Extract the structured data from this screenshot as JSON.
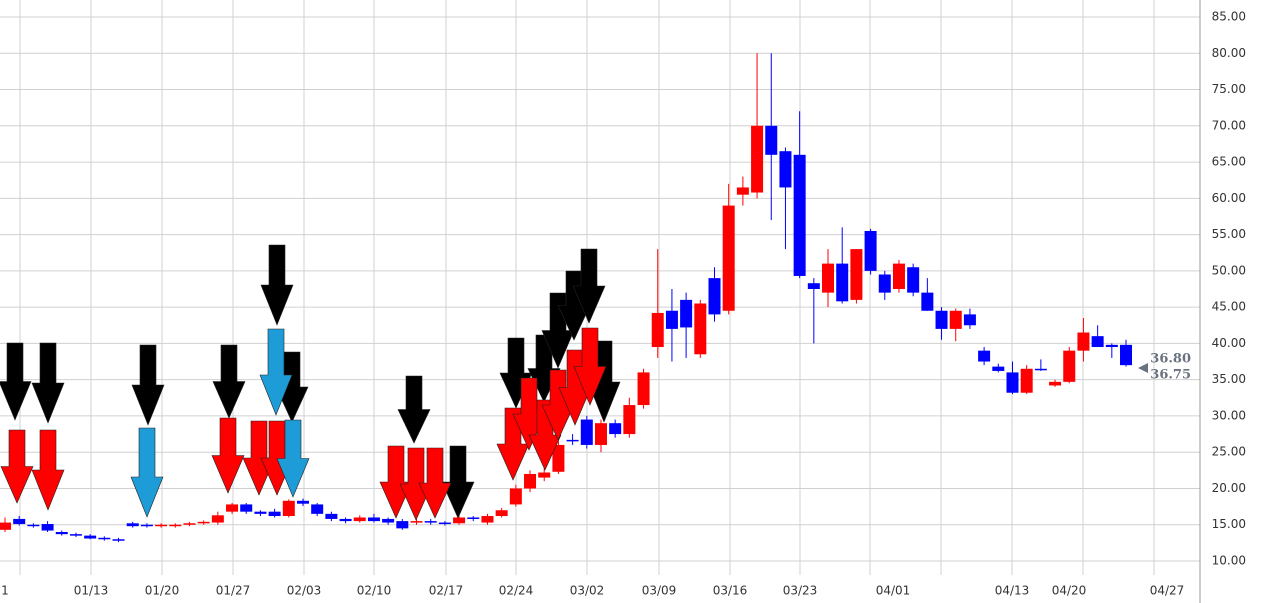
{
  "chart_data": {
    "type": "candlestick",
    "up_color": "#ff0000",
    "down_color": "#0000ff",
    "grid": true,
    "ylim": [
      8,
      87
    ],
    "yticks": [
      {
        "value": 10,
        "label": "10.00"
      },
      {
        "value": 15,
        "label": "15.00"
      },
      {
        "value": 20,
        "label": "20.00"
      },
      {
        "value": 25,
        "label": "25.00"
      },
      {
        "value": 30,
        "label": "30.00"
      },
      {
        "value": 35,
        "label": "35.00"
      },
      {
        "value": 40,
        "label": "40.00"
      },
      {
        "value": 45,
        "label": "45.00"
      },
      {
        "value": 50,
        "label": "50.00"
      },
      {
        "value": 55,
        "label": "55.00"
      },
      {
        "value": 60,
        "label": "60.00"
      },
      {
        "value": 65,
        "label": "65.00"
      },
      {
        "value": 70,
        "label": "70.00"
      },
      {
        "value": 75,
        "label": "75.00"
      },
      {
        "value": 80,
        "label": "80.00"
      },
      {
        "value": 85,
        "label": "85.00"
      }
    ],
    "xtick_labels": [
      "1",
      "01/13",
      "01/20",
      "01/27",
      "02/03",
      "02/10",
      "02/17",
      "02/24",
      "03/02",
      "03/09",
      "03/16",
      "03/23",
      "04/01",
      "04/13",
      "04/20",
      "04/27"
    ],
    "annotations": [
      "36.80",
      "36.75"
    ],
    "candles": [
      [
        14.3,
        16,
        14,
        15.3
      ],
      [
        15.8,
        16.2,
        14.9,
        15.1
      ],
      [
        15,
        15.2,
        14.6,
        14.8
      ],
      [
        15.1,
        15.5,
        14,
        14.2
      ],
      [
        14,
        14.2,
        13.5,
        13.7
      ],
      [
        13.7,
        13.9,
        13.3,
        13.5
      ],
      [
        13.5,
        13.7,
        13,
        13.1
      ],
      [
        13.2,
        13.4,
        12.8,
        13
      ],
      [
        13,
        13.2,
        12.6,
        12.8
      ],
      [
        15.2,
        15.4,
        14.6,
        14.8
      ],
      [
        15,
        15.2,
        14.6,
        14.8
      ],
      [
        14.8,
        15.2,
        14.6,
        15
      ],
      [
        14.8,
        15.2,
        14.6,
        15
      ],
      [
        15,
        15.4,
        14.8,
        15.2
      ],
      [
        15.2,
        15.6,
        15,
        15.4
      ],
      [
        15.3,
        16.8,
        15,
        16.3
      ],
      [
        16.8,
        18,
        16.5,
        17.8
      ],
      [
        17.8,
        18,
        16.5,
        16.8
      ],
      [
        16.8,
        17,
        16.2,
        16.5
      ],
      [
        16.8,
        17.2,
        16,
        16.2
      ],
      [
        16.2,
        18.5,
        16,
        18.3
      ],
      [
        18.3,
        18.6,
        17.6,
        17.9
      ],
      [
        17.8,
        18,
        16.2,
        16.5
      ],
      [
        16.5,
        16.8,
        15.5,
        15.8
      ],
      [
        15.8,
        16,
        15.2,
        15.5
      ],
      [
        15.5,
        16.3,
        15.3,
        16
      ],
      [
        16,
        16.5,
        15.3,
        15.5
      ],
      [
        15.8,
        16,
        15,
        15.3
      ],
      [
        15.5,
        15.8,
        14.3,
        14.5
      ],
      [
        15.3,
        15.8,
        15,
        15.5
      ],
      [
        15.5,
        15.8,
        15,
        15.3
      ],
      [
        15.3,
        15.5,
        14.9,
        15.1
      ],
      [
        15.2,
        16.3,
        15,
        16
      ],
      [
        16,
        16.2,
        15.5,
        15.8
      ],
      [
        15.3,
        16.5,
        15,
        16.2
      ],
      [
        16.2,
        17.3,
        16,
        17
      ],
      [
        17.8,
        20.5,
        17.5,
        20
      ],
      [
        20,
        22.5,
        19.5,
        22
      ],
      [
        21.5,
        22.8,
        21,
        22.2
      ],
      [
        22.3,
        26.5,
        22,
        26
      ],
      [
        26.7,
        27.5,
        26,
        26.5
      ],
      [
        29.5,
        30,
        25.5,
        26
      ],
      [
        26,
        29.5,
        25,
        29
      ],
      [
        29,
        29.5,
        27,
        27.5
      ],
      [
        27.5,
        32.5,
        27,
        31.5
      ],
      [
        31.5,
        36.5,
        31,
        36
      ],
      [
        39.5,
        53,
        38,
        44.2
      ],
      [
        44.5,
        47.5,
        37.5,
        42
      ],
      [
        46,
        47,
        38,
        42.2
      ],
      [
        38.5,
        46,
        38,
        45.5
      ],
      [
        49,
        50.5,
        43,
        44
      ],
      [
        44.5,
        62,
        44,
        59
      ],
      [
        60.5,
        63,
        59,
        61.5
      ],
      [
        60.8,
        80,
        60,
        70
      ],
      [
        70,
        80,
        57,
        66
      ],
      [
        66.5,
        67,
        53,
        61.5
      ],
      [
        66,
        72,
        49,
        49.3
      ],
      [
        48.3,
        49,
        40,
        47.5
      ],
      [
        47,
        53,
        45,
        51
      ],
      [
        51,
        56,
        45.5,
        45.8
      ],
      [
        46,
        53,
        45.5,
        53
      ],
      [
        55.5,
        55.8,
        49.5,
        50
      ],
      [
        49.5,
        50,
        46,
        47
      ],
      [
        47.5,
        51.5,
        47,
        51
      ],
      [
        50.5,
        51,
        46.5,
        47
      ],
      [
        47,
        49,
        44.5,
        44.5
      ],
      [
        44.5,
        45,
        40.5,
        42
      ],
      [
        42,
        44.8,
        40.3,
        44.5
      ],
      [
        44,
        44.8,
        42,
        42.5
      ],
      [
        39,
        39.5,
        37,
        37.5
      ],
      [
        36.8,
        37.2,
        36,
        36.2
      ],
      [
        36,
        37.5,
        33,
        33.2
      ],
      [
        33.2,
        37,
        33,
        36.5
      ],
      [
        36.5,
        37.8,
        36.2,
        36.5
      ],
      [
        34.2,
        35,
        34,
        34.7
      ],
      [
        34.7,
        39.5,
        34.5,
        39
      ],
      [
        39,
        43.5,
        37.5,
        41.5
      ],
      [
        41,
        42.5,
        39.5,
        39.5
      ],
      [
        39.8,
        40,
        38,
        39.5
      ],
      [
        39.8,
        40.5,
        36.8,
        37
      ]
    ]
  }
}
